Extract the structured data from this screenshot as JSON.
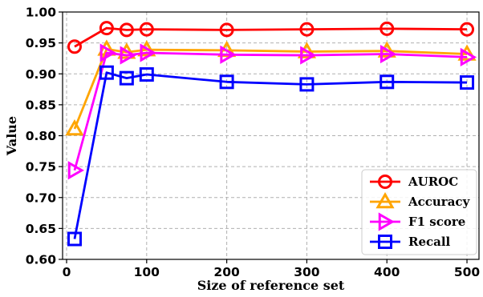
{
  "chart_data": {
    "type": "line",
    "xlabel": "Size of reference set",
    "ylabel": "Value",
    "xlim": [
      -5,
      515
    ],
    "ylim": [
      0.6,
      1.0
    ],
    "x": [
      10,
      50,
      75,
      100,
      200,
      300,
      400,
      500
    ],
    "x_ticks": [
      0,
      100,
      200,
      300,
      400,
      500
    ],
    "y_ticks": [
      0.6,
      0.65,
      0.7,
      0.75,
      0.8,
      0.85,
      0.9,
      0.95,
      1.0
    ],
    "grid": true,
    "legend_position": "lower-right",
    "series": [
      {
        "name": "AUROC",
        "color": "#ff0000",
        "marker": "circle",
        "values": [
          0.944,
          0.974,
          0.971,
          0.972,
          0.971,
          0.972,
          0.973,
          0.972
        ]
      },
      {
        "name": "Accuracy",
        "color": "#ffa500",
        "marker": "triangle-up",
        "values": [
          0.811,
          0.94,
          0.935,
          0.939,
          0.938,
          0.936,
          0.937,
          0.932
        ]
      },
      {
        "name": "F1 score",
        "color": "#ff00ff",
        "marker": "triangle-right",
        "values": [
          0.744,
          0.934,
          0.93,
          0.934,
          0.931,
          0.93,
          0.932,
          0.927
        ]
      },
      {
        "name": "Recall",
        "color": "#0000ff",
        "marker": "square",
        "values": [
          0.633,
          0.902,
          0.893,
          0.899,
          0.887,
          0.883,
          0.887,
          0.886
        ]
      }
    ]
  }
}
